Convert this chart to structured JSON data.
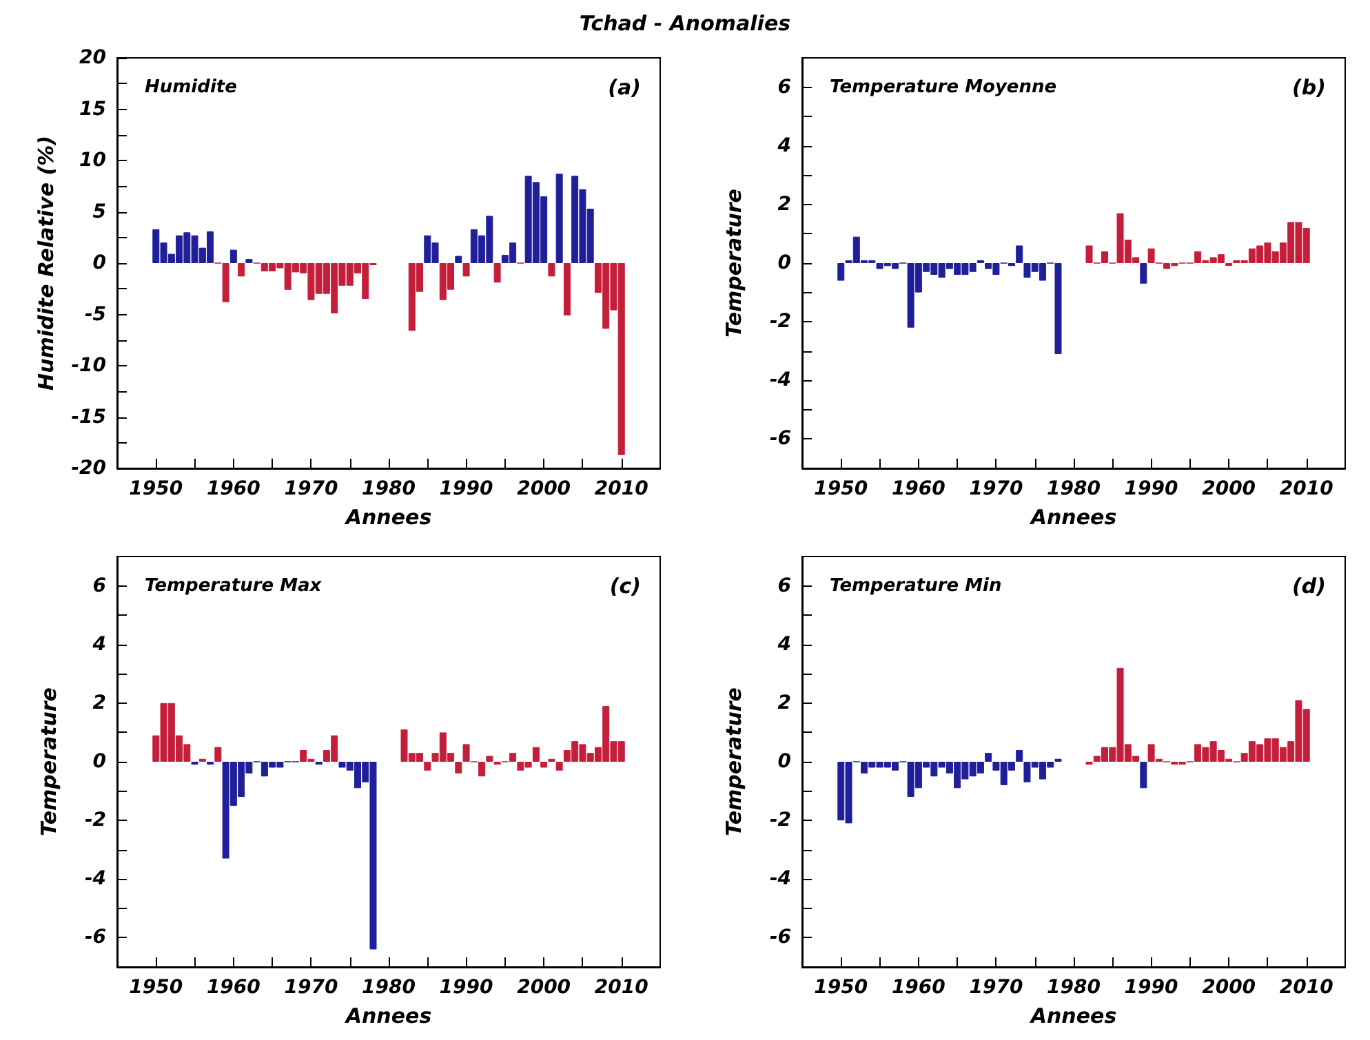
{
  "chart_data": [
    {
      "type": "bar",
      "title": "Humidite",
      "annotations": [
        "(a)",
        "Tchad - Anomalies"
      ],
      "xlabel": "Annees",
      "ylabel": "Humidite Relative (%)",
      "grid": false,
      "xlim": [
        1945,
        2015
      ],
      "xticks": [
        1950,
        {
          "value": 1955,
          "label": null
        },
        1960,
        {
          "value": 1965,
          "label": null
        },
        1970,
        {
          "value": 1975,
          "label": null
        },
        1980,
        {
          "value": 1985,
          "label": null
        },
        1990,
        {
          "value": 1995,
          "label": null
        },
        2000,
        {
          "value": 2005,
          "label": null
        },
        2010
      ],
      "ylim": [
        -20,
        20
      ],
      "yticks": [
        -20,
        {
          "value": -17.5,
          "label": null
        },
        -15,
        {
          "value": -12.5,
          "label": null
        },
        -10,
        {
          "value": -7.5,
          "label": null
        },
        -5,
        {
          "value": -2.5,
          "label": null
        },
        0,
        {
          "value": 2.5,
          "label": null
        },
        5,
        {
          "value": 7.5,
          "label": null
        },
        10,
        {
          "value": 12.5,
          "label": null
        },
        15,
        {
          "value": 17.5,
          "label": null
        },
        20
      ],
      "x": [
        1950,
        1951,
        1952,
        1953,
        1954,
        1955,
        1956,
        1957,
        1958,
        1959,
        1960,
        1961,
        1962,
        1963,
        1964,
        1965,
        1966,
        1967,
        1968,
        1969,
        1970,
        1971,
        1972,
        1973,
        1974,
        1975,
        1976,
        1977,
        1978,
        1979,
        1980,
        1981,
        1982,
        1983,
        1984,
        1985,
        1986,
        1987,
        1988,
        1989,
        1990,
        1991,
        1992,
        1993,
        1994,
        1995,
        1996,
        1997,
        1998,
        1999,
        2000,
        2001,
        2002,
        2003,
        2004,
        2005,
        2006,
        2007,
        2008,
        2009,
        2010
      ],
      "values": [
        3.3,
        2.0,
        0.9,
        2.7,
        3.0,
        2.7,
        1.5,
        3.1,
        0,
        -3.8,
        1.3,
        -1.3,
        0.4,
        0,
        -0.8,
        -0.8,
        -0.5,
        -2.6,
        -0.9,
        -1.0,
        -3.6,
        -3.0,
        -3.0,
        -4.9,
        -2.2,
        -2.2,
        -1.0,
        -3.5,
        -0.2,
        null,
        null,
        null,
        null,
        -6.6,
        -2.8,
        2.7,
        2.0,
        -3.6,
        -2.6,
        0.7,
        -1.3,
        3.3,
        2.7,
        4.6,
        -1.9,
        0.8,
        2.0,
        0,
        8.5,
        7.9,
        6.5,
        -1.3,
        8.7,
        -5.1,
        8.5,
        7.2,
        5.3,
        -2.9,
        -6.4,
        -4.6,
        -18.7
      ],
      "colors": [
        "#1f1f9a",
        "#1f1f9a",
        "#1f1f9a",
        "#1f1f9a",
        "#1f1f9a",
        "#1f1f9a",
        "#1f1f9a",
        "#1f1f9a",
        "#c41e3a",
        "#c41e3a",
        "#1f1f9a",
        "#c41e3a",
        "#1f1f9a",
        "#c41e3a",
        "#c41e3a",
        "#c41e3a",
        "#c41e3a",
        "#c41e3a",
        "#c41e3a",
        "#c41e3a",
        "#c41e3a",
        "#c41e3a",
        "#c41e3a",
        "#c41e3a",
        "#c41e3a",
        "#c41e3a",
        "#c41e3a",
        "#c41e3a",
        "#c41e3a",
        null,
        null,
        null,
        null,
        "#c41e3a",
        "#c41e3a",
        "#1f1f9a",
        "#1f1f9a",
        "#c41e3a",
        "#c41e3a",
        "#1f1f9a",
        "#c41e3a",
        "#1f1f9a",
        "#1f1f9a",
        "#1f1f9a",
        "#c41e3a",
        "#1f1f9a",
        "#1f1f9a",
        "#c41e3a",
        "#1f1f9a",
        "#1f1f9a",
        "#1f1f9a",
        "#c41e3a",
        "#1f1f9a",
        "#c41e3a",
        "#1f1f9a",
        "#1f1f9a",
        "#1f1f9a",
        "#c41e3a",
        "#c41e3a",
        "#c41e3a",
        "#c41e3a"
      ]
    },
    {
      "type": "bar",
      "title": "Temperature Moyenne",
      "annotations": [
        "(b)"
      ],
      "xlabel": "Annees",
      "ylabel": "Temperature",
      "grid": false,
      "xlim": [
        1945,
        2015
      ],
      "xticks": [
        1950,
        {
          "value": 1955,
          "label": null
        },
        1960,
        {
          "value": 1965,
          "label": null
        },
        1970,
        {
          "value": 1975,
          "label": null
        },
        1980,
        {
          "value": 1985,
          "label": null
        },
        1990,
        {
          "value": 1995,
          "label": null
        },
        2000,
        {
          "value": 2005,
          "label": null
        },
        2010
      ],
      "ylim": [
        -7,
        7
      ],
      "yticks": [
        -6,
        {
          "value": -5,
          "label": null
        },
        -4,
        {
          "value": -3,
          "label": null
        },
        -2,
        {
          "value": -1,
          "label": null
        },
        0,
        {
          "value": 1,
          "label": null
        },
        2,
        {
          "value": 3,
          "label": null
        },
        4,
        {
          "value": 5,
          "label": null
        },
        6
      ],
      "x": [
        1950,
        1951,
        1952,
        1953,
        1954,
        1955,
        1956,
        1957,
        1958,
        1959,
        1960,
        1961,
        1962,
        1963,
        1964,
        1965,
        1966,
        1967,
        1968,
        1969,
        1970,
        1971,
        1972,
        1973,
        1974,
        1975,
        1976,
        1977,
        1978,
        1979,
        1980,
        1981,
        1982,
        1983,
        1984,
        1985,
        1986,
        1987,
        1988,
        1989,
        1990,
        1991,
        1992,
        1993,
        1994,
        1995,
        1996,
        1997,
        1998,
        1999,
        2000,
        2001,
        2002,
        2003,
        2004,
        2005,
        2006,
        2007,
        2008,
        2009,
        2010
      ],
      "values": [
        -0.6,
        0.1,
        0.9,
        0.1,
        0.1,
        -0.2,
        -0.1,
        -0.2,
        0,
        -2.2,
        -1.0,
        -0.3,
        -0.4,
        -0.5,
        -0.2,
        -0.4,
        -0.4,
        -0.3,
        0.1,
        -0.2,
        -0.4,
        0,
        -0.1,
        0.6,
        -0.5,
        -0.3,
        -0.6,
        0,
        -3.1,
        null,
        null,
        null,
        0.6,
        0,
        0.4,
        0,
        1.7,
        0.8,
        0.2,
        -0.7,
        0.5,
        0,
        -0.2,
        -0.1,
        0,
        0,
        0.4,
        0.1,
        0.2,
        0.3,
        -0.1,
        0.1,
        0.1,
        0.5,
        0.6,
        0.7,
        0.4,
        0.7,
        1.4,
        1.4,
        1.2
      ],
      "colors": [
        "#1f1f9a",
        "#1f1f9a",
        "#1f1f9a",
        "#1f1f9a",
        "#1f1f9a",
        "#1f1f9a",
        "#1f1f9a",
        "#1f1f9a",
        "#1f1f9a",
        "#1f1f9a",
        "#1f1f9a",
        "#1f1f9a",
        "#1f1f9a",
        "#1f1f9a",
        "#1f1f9a",
        "#1f1f9a",
        "#1f1f9a",
        "#1f1f9a",
        "#1f1f9a",
        "#1f1f9a",
        "#1f1f9a",
        "#1f1f9a",
        "#1f1f9a",
        "#1f1f9a",
        "#1f1f9a",
        "#1f1f9a",
        "#1f1f9a",
        "#1f1f9a",
        "#1f1f9a",
        null,
        null,
        null,
        "#c41e3a",
        "#c41e3a",
        "#c41e3a",
        "#c41e3a",
        "#c41e3a",
        "#c41e3a",
        "#c41e3a",
        "#1f1f9a",
        "#c41e3a",
        "#c41e3a",
        "#c41e3a",
        "#c41e3a",
        "#c41e3a",
        "#c41e3a",
        "#c41e3a",
        "#c41e3a",
        "#c41e3a",
        "#c41e3a",
        "#c41e3a",
        "#c41e3a",
        "#c41e3a",
        "#c41e3a",
        "#c41e3a",
        "#c41e3a",
        "#c41e3a",
        "#c41e3a",
        "#c41e3a",
        "#c41e3a",
        "#c41e3a"
      ]
    },
    {
      "type": "bar",
      "title": "Temperature Max",
      "annotations": [
        "(c)"
      ],
      "xlabel": "Annees",
      "ylabel": "Temperature",
      "grid": false,
      "xlim": [
        1945,
        2015
      ],
      "xticks": [
        1950,
        {
          "value": 1955,
          "label": null
        },
        1960,
        {
          "value": 1965,
          "label": null
        },
        1970,
        {
          "value": 1975,
          "label": null
        },
        1980,
        {
          "value": 1985,
          "label": null
        },
        1990,
        {
          "value": 1995,
          "label": null
        },
        2000,
        {
          "value": 2005,
          "label": null
        },
        2010
      ],
      "ylim": [
        -7,
        7
      ],
      "yticks": [
        -6,
        {
          "value": -5,
          "label": null
        },
        -4,
        {
          "value": -3,
          "label": null
        },
        -2,
        {
          "value": -1,
          "label": null
        },
        0,
        {
          "value": 1,
          "label": null
        },
        2,
        {
          "value": 3,
          "label": null
        },
        4,
        {
          "value": 5,
          "label": null
        },
        6
      ],
      "x": [
        1950,
        1951,
        1952,
        1953,
        1954,
        1955,
        1956,
        1957,
        1958,
        1959,
        1960,
        1961,
        1962,
        1963,
        1964,
        1965,
        1966,
        1967,
        1968,
        1969,
        1970,
        1971,
        1972,
        1973,
        1974,
        1975,
        1976,
        1977,
        1978,
        1979,
        1980,
        1981,
        1982,
        1983,
        1984,
        1985,
        1986,
        1987,
        1988,
        1989,
        1990,
        1991,
        1992,
        1993,
        1994,
        1995,
        1996,
        1997,
        1998,
        1999,
        2000,
        2001,
        2002,
        2003,
        2004,
        2005,
        2006,
        2007,
        2008,
        2009,
        2010
      ],
      "values": [
        0.9,
        2.0,
        2.0,
        0.9,
        0.6,
        -0.1,
        0.1,
        -0.1,
        0.5,
        -3.3,
        -1.5,
        -1.2,
        -0.4,
        0,
        -0.5,
        -0.2,
        -0.2,
        0,
        0,
        0.4,
        0.1,
        -0.1,
        0.4,
        0.9,
        -0.2,
        -0.3,
        -0.9,
        -0.7,
        -6.4,
        null,
        null,
        null,
        1.1,
        0.3,
        0.3,
        -0.3,
        0.3,
        1.0,
        0.3,
        -0.4,
        0.6,
        0,
        -0.5,
        0.2,
        -0.1,
        0,
        0.3,
        -0.3,
        -0.2,
        0.5,
        -0.2,
        0.1,
        -0.3,
        0.4,
        0.7,
        0.6,
        0.3,
        0.5,
        1.9,
        0.7,
        0.7
      ],
      "colors": [
        "#c41e3a",
        "#c41e3a",
        "#c41e3a",
        "#c41e3a",
        "#c41e3a",
        "#1f1f9a",
        "#c41e3a",
        "#1f1f9a",
        "#c41e3a",
        "#1f1f9a",
        "#1f1f9a",
        "#1f1f9a",
        "#1f1f9a",
        "#1f1f9a",
        "#1f1f9a",
        "#1f1f9a",
        "#1f1f9a",
        "#1f1f9a",
        "#1f1f9a",
        "#c41e3a",
        "#c41e3a",
        "#1f1f9a",
        "#c41e3a",
        "#c41e3a",
        "#1f1f9a",
        "#1f1f9a",
        "#1f1f9a",
        "#1f1f9a",
        "#1f1f9a",
        null,
        null,
        null,
        "#c41e3a",
        "#c41e3a",
        "#c41e3a",
        "#c41e3a",
        "#c41e3a",
        "#c41e3a",
        "#c41e3a",
        "#c41e3a",
        "#c41e3a",
        "#c41e3a",
        "#c41e3a",
        "#c41e3a",
        "#c41e3a",
        "#c41e3a",
        "#c41e3a",
        "#c41e3a",
        "#c41e3a",
        "#c41e3a",
        "#c41e3a",
        "#c41e3a",
        "#c41e3a",
        "#c41e3a",
        "#c41e3a",
        "#c41e3a",
        "#c41e3a",
        "#c41e3a",
        "#c41e3a",
        "#c41e3a",
        "#c41e3a"
      ]
    },
    {
      "type": "bar",
      "title": "Temperature Min",
      "annotations": [
        "(d)"
      ],
      "xlabel": "Annees",
      "ylabel": "Temperature",
      "grid": false,
      "xlim": [
        1945,
        2015
      ],
      "xticks": [
        1950,
        {
          "value": 1955,
          "label": null
        },
        1960,
        {
          "value": 1965,
          "label": null
        },
        1970,
        {
          "value": 1975,
          "label": null
        },
        1980,
        {
          "value": 1985,
          "label": null
        },
        1990,
        {
          "value": 1995,
          "label": null
        },
        2000,
        {
          "value": 2005,
          "label": null
        },
        2010
      ],
      "ylim": [
        -7,
        7
      ],
      "yticks": [
        -6,
        {
          "value": -5,
          "label": null
        },
        -4,
        {
          "value": -3,
          "label": null
        },
        -2,
        {
          "value": -1,
          "label": null
        },
        0,
        {
          "value": 1,
          "label": null
        },
        2,
        {
          "value": 3,
          "label": null
        },
        4,
        {
          "value": 5,
          "label": null
        },
        6
      ],
      "x": [
        1950,
        1951,
        1952,
        1953,
        1954,
        1955,
        1956,
        1957,
        1958,
        1959,
        1960,
        1961,
        1962,
        1963,
        1964,
        1965,
        1966,
        1967,
        1968,
        1969,
        1970,
        1971,
        1972,
        1973,
        1974,
        1975,
        1976,
        1977,
        1978,
        1979,
        1980,
        1981,
        1982,
        1983,
        1984,
        1985,
        1986,
        1987,
        1988,
        1989,
        1990,
        1991,
        1992,
        1993,
        1994,
        1995,
        1996,
        1997,
        1998,
        1999,
        2000,
        2001,
        2002,
        2003,
        2004,
        2005,
        2006,
        2007,
        2008,
        2009,
        2010
      ],
      "values": [
        -2.0,
        -2.1,
        0,
        -0.4,
        -0.2,
        -0.2,
        -0.2,
        -0.3,
        0,
        -1.2,
        -0.9,
        -0.2,
        -0.5,
        -0.2,
        -0.4,
        -0.9,
        -0.6,
        -0.5,
        -0.4,
        0.3,
        -0.3,
        -0.8,
        -0.3,
        0.4,
        -0.7,
        -0.2,
        -0.6,
        -0.2,
        0.1,
        null,
        null,
        null,
        -0.1,
        0.2,
        0.5,
        0.5,
        3.2,
        0.6,
        0.2,
        -0.9,
        0.6,
        0.1,
        0,
        -0.1,
        -0.1,
        0,
        0.6,
        0.5,
        0.7,
        0.4,
        0.1,
        0,
        0.3,
        0.7,
        0.6,
        0.8,
        0.8,
        0.5,
        0.7,
        2.1,
        1.8
      ],
      "colors": [
        "#1f1f9a",
        "#1f1f9a",
        "#1f1f9a",
        "#1f1f9a",
        "#1f1f9a",
        "#1f1f9a",
        "#1f1f9a",
        "#1f1f9a",
        "#1f1f9a",
        "#1f1f9a",
        "#1f1f9a",
        "#1f1f9a",
        "#1f1f9a",
        "#1f1f9a",
        "#1f1f9a",
        "#1f1f9a",
        "#1f1f9a",
        "#1f1f9a",
        "#1f1f9a",
        "#1f1f9a",
        "#1f1f9a",
        "#1f1f9a",
        "#1f1f9a",
        "#1f1f9a",
        "#1f1f9a",
        "#1f1f9a",
        "#1f1f9a",
        "#1f1f9a",
        "#1f1f9a",
        null,
        null,
        null,
        "#c41e3a",
        "#c41e3a",
        "#c41e3a",
        "#c41e3a",
        "#c41e3a",
        "#c41e3a",
        "#c41e3a",
        "#1f1f9a",
        "#c41e3a",
        "#c41e3a",
        "#c41e3a",
        "#c41e3a",
        "#c41e3a",
        "#c41e3a",
        "#c41e3a",
        "#c41e3a",
        "#c41e3a",
        "#c41e3a",
        "#c41e3a",
        "#c41e3a",
        "#c41e3a",
        "#c41e3a",
        "#c41e3a",
        "#c41e3a",
        "#c41e3a",
        "#c41e3a",
        "#c41e3a",
        "#c41e3a",
        "#c41e3a"
      ]
    }
  ]
}
